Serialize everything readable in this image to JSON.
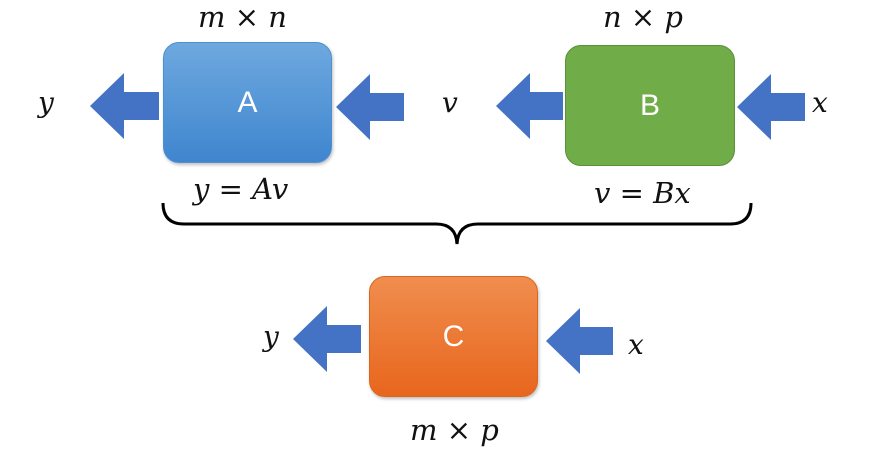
{
  "blocks": {
    "a": {
      "label": "A",
      "dims": "m × n",
      "equation": "y = Av",
      "color": "#5b9bd5"
    },
    "b": {
      "label": "B",
      "dims": "n × p",
      "equation": "v = Bx",
      "color": "#70ad47"
    },
    "c": {
      "label": "C",
      "dims": "m × p",
      "color": "#ed7d31"
    }
  },
  "signals": {
    "top_left_output": "y",
    "middle": "v",
    "top_right_input": "x",
    "bottom_output": "y",
    "bottom_input": "x"
  },
  "arrow_color": "#4472c4"
}
